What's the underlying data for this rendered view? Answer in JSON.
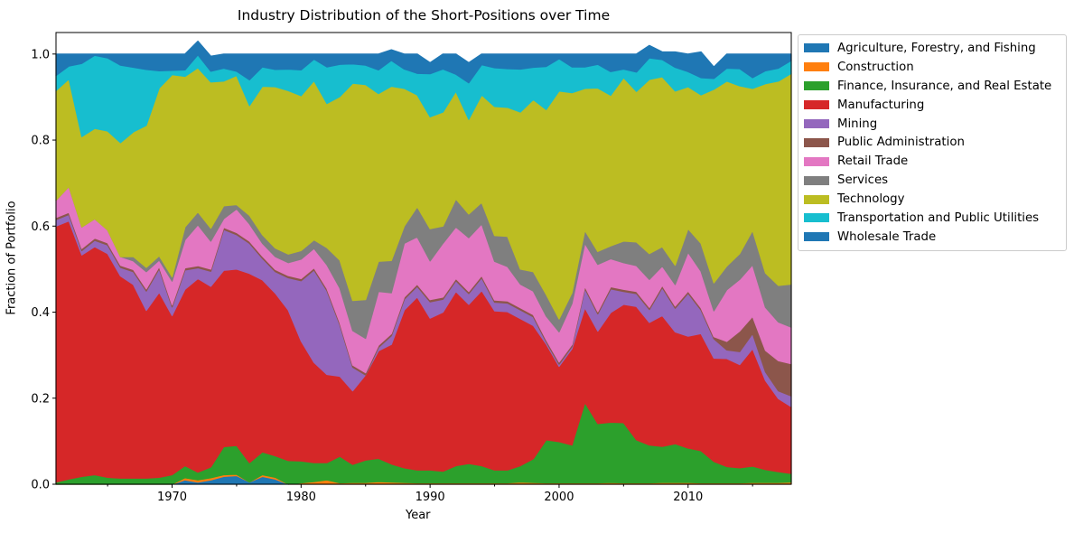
{
  "chart_data": {
    "type": "area",
    "stacked": true,
    "title": "Industry Distribution of the Short-Positions over Time",
    "xlabel": "Year",
    "ylabel": "Fraction of Portfolio",
    "xlim": [
      1961,
      2018
    ],
    "ylim": [
      0,
      1.05
    ],
    "xticks": [
      1970,
      1980,
      1990,
      2000,
      2010
    ],
    "yticks": [
      0.0,
      0.2,
      0.4,
      0.6,
      0.8,
      1.0
    ],
    "grid": false,
    "legend_position": "outside-right",
    "x": [
      1961,
      1962,
      1963,
      1964,
      1965,
      1966,
      1967,
      1968,
      1969,
      1970,
      1971,
      1972,
      1973,
      1974,
      1975,
      1976,
      1977,
      1978,
      1979,
      1980,
      1981,
      1982,
      1983,
      1984,
      1985,
      1986,
      1987,
      1988,
      1989,
      1990,
      1991,
      1992,
      1993,
      1994,
      1995,
      1996,
      1997,
      1998,
      1999,
      2000,
      2001,
      2002,
      2003,
      2004,
      2005,
      2006,
      2007,
      2008,
      2009,
      2010,
      2011,
      2012,
      2013,
      2014,
      2015,
      2016,
      2017,
      2018
    ],
    "series_cumulative_note": "values are per-industry fractions; stacked in listed order",
    "series": [
      {
        "name": "Agriculture, Forestry, and Fishing",
        "color": "#1f77b4",
        "values": [
          0,
          0,
          0,
          0,
          0,
          0,
          0,
          0,
          0,
          0,
          0.01,
          0.005,
          0.01,
          0.018,
          0.02,
          0.005,
          0.018,
          0.012,
          0,
          0,
          0,
          0,
          0,
          0,
          0,
          0,
          0,
          0,
          0,
          0,
          0,
          0,
          0,
          0,
          0,
          0,
          0,
          0,
          0,
          0,
          0,
          0,
          0,
          0,
          0,
          0,
          0,
          0,
          0,
          0,
          0,
          0,
          0,
          0,
          0,
          0,
          0,
          0
        ]
      },
      {
        "name": "Construction",
        "color": "#ff7f0e",
        "values": [
          0,
          0,
          0,
          0,
          0,
          0,
          0,
          0,
          0,
          0,
          0.005,
          0.005,
          0.005,
          0.004,
          0.003,
          0,
          0.004,
          0.004,
          0,
          0.003,
          0.006,
          0.01,
          0.003,
          0.004,
          0.004,
          0.006,
          0.005,
          0.004,
          0.003,
          0.003,
          0.003,
          0.003,
          0.003,
          0.003,
          0.003,
          0.003,
          0.005,
          0.004,
          0.003,
          0.003,
          0.003,
          0.003,
          0.003,
          0.004,
          0.003,
          0.003,
          0.003,
          0.004,
          0.004,
          0.004,
          0.003,
          0.003,
          0.003,
          0.003,
          0.004,
          0.004,
          0.004,
          0.005
        ]
      },
      {
        "name": "Finance, Insurance, and Real Estate",
        "color": "#2ca02c",
        "values": [
          0.005,
          0.012,
          0.018,
          0.022,
          0.016,
          0.014,
          0.014,
          0.014,
          0.016,
          0.022,
          0.028,
          0.018,
          0.025,
          0.065,
          0.067,
          0.045,
          0.053,
          0.05,
          0.055,
          0.051,
          0.044,
          0.04,
          0.062,
          0.042,
          0.052,
          0.054,
          0.042,
          0.034,
          0.03,
          0.03,
          0.027,
          0.04,
          0.045,
          0.04,
          0.03,
          0.03,
          0.038,
          0.055,
          0.1,
          0.096,
          0.088,
          0.187,
          0.138,
          0.14,
          0.14,
          0.1,
          0.088,
          0.084,
          0.09,
          0.08,
          0.075,
          0.05,
          0.038,
          0.035,
          0.038,
          0.03,
          0.025,
          0.02
        ]
      },
      {
        "name": "Manufacturing",
        "color": "#d62728",
        "values": [
          0.595,
          0.6,
          0.515,
          0.53,
          0.52,
          0.47,
          0.45,
          0.39,
          0.43,
          0.37,
          0.41,
          0.45,
          0.42,
          0.41,
          0.41,
          0.44,
          0.4,
          0.378,
          0.35,
          0.279,
          0.233,
          0.205,
          0.186,
          0.171,
          0.198,
          0.25,
          0.278,
          0.367,
          0.402,
          0.353,
          0.37,
          0.405,
          0.37,
          0.407,
          0.37,
          0.368,
          0.342,
          0.31,
          0.223,
          0.175,
          0.224,
          0.22,
          0.215,
          0.255,
          0.275,
          0.31,
          0.285,
          0.304,
          0.26,
          0.26,
          0.272,
          0.24,
          0.251,
          0.24,
          0.273,
          0.207,
          0.17,
          0.155
        ]
      },
      {
        "name": "Mining",
        "color": "#9467bd",
        "values": [
          0.015,
          0.015,
          0.01,
          0.015,
          0.02,
          0.02,
          0.03,
          0.045,
          0.055,
          0.02,
          0.045,
          0.025,
          0.035,
          0.095,
          0.08,
          0.07,
          0.05,
          0.05,
          0.075,
          0.14,
          0.215,
          0.195,
          0.12,
          0.055,
          0,
          0.008,
          0.02,
          0.025,
          0.025,
          0.038,
          0.03,
          0.025,
          0.025,
          0.03,
          0.02,
          0.02,
          0.02,
          0.02,
          0.005,
          0.005,
          0.005,
          0.045,
          0.04,
          0.055,
          0.03,
          0.03,
          0.03,
          0.065,
          0.055,
          0.1,
          0.055,
          0.045,
          0.02,
          0.03,
          0.035,
          0.02,
          0.018,
          0.025
        ]
      },
      {
        "name": "Public Administration",
        "color": "#8c564b",
        "values": [
          0.005,
          0.005,
          0.005,
          0.005,
          0.005,
          0.005,
          0.005,
          0.005,
          0.005,
          0.005,
          0.005,
          0.005,
          0.005,
          0.005,
          0.005,
          0.005,
          0.005,
          0.005,
          0.005,
          0.005,
          0.005,
          0.005,
          0.005,
          0.005,
          0.005,
          0.005,
          0.005,
          0.005,
          0.005,
          0.005,
          0.005,
          0.005,
          0.005,
          0.005,
          0.005,
          0.005,
          0.005,
          0.005,
          0.005,
          0.005,
          0.005,
          0.005,
          0.005,
          0.005,
          0.005,
          0.005,
          0.005,
          0.005,
          0.005,
          0.005,
          0.005,
          0.005,
          0.02,
          0.048,
          0.04,
          0.05,
          0.07,
          0.075
        ]
      },
      {
        "name": "Retail Trade",
        "color": "#e377c2",
        "values": [
          0.04,
          0.06,
          0.05,
          0.045,
          0.03,
          0.02,
          0.02,
          0.04,
          0.015,
          0.055,
          0.065,
          0.095,
          0.065,
          0.02,
          0.055,
          0.04,
          0.03,
          0.03,
          0.03,
          0.045,
          0.045,
          0.055,
          0.08,
          0.08,
          0.08,
          0.125,
          0.095,
          0.125,
          0.11,
          0.09,
          0.125,
          0.12,
          0.125,
          0.12,
          0.09,
          0.08,
          0.055,
          0.055,
          0.055,
          0.07,
          0.095,
          0.1,
          0.11,
          0.065,
          0.062,
          0.06,
          0.065,
          0.045,
          0.05,
          0.09,
          0.085,
          0.06,
          0.12,
          0.12,
          0.12,
          0.1,
          0.09,
          0.085
        ]
      },
      {
        "name": "Services",
        "color": "#7f7f7f",
        "values": [
          0,
          0,
          0,
          0,
          0,
          0,
          0.01,
          0.01,
          0.01,
          0.01,
          0.03,
          0.03,
          0.03,
          0.03,
          0.01,
          0.02,
          0.02,
          0.02,
          0.02,
          0.02,
          0.02,
          0.04,
          0.065,
          0.07,
          0.09,
          0.07,
          0.075,
          0.04,
          0.07,
          0.075,
          0.04,
          0.065,
          0.055,
          0.05,
          0.06,
          0.07,
          0.035,
          0.045,
          0.05,
          0.03,
          0.025,
          0.03,
          0.03,
          0.03,
          0.05,
          0.055,
          0.06,
          0.045,
          0.045,
          0.055,
          0.065,
          0.065,
          0.055,
          0.06,
          0.08,
          0.08,
          0.085,
          0.1
        ]
      },
      {
        "name": "Technology",
        "color": "#bcbd22",
        "values": [
          0.255,
          0.25,
          0.21,
          0.21,
          0.23,
          0.265,
          0.29,
          0.33,
          0.39,
          0.47,
          0.35,
          0.335,
          0.34,
          0.29,
          0.3,
          0.255,
          0.345,
          0.375,
          0.38,
          0.36,
          0.37,
          0.335,
          0.38,
          0.505,
          0.5,
          0.39,
          0.405,
          0.32,
          0.26,
          0.26,
          0.265,
          0.25,
          0.22,
          0.25,
          0.3,
          0.3,
          0.365,
          0.4,
          0.43,
          0.53,
          0.465,
          0.33,
          0.38,
          0.35,
          0.38,
          0.35,
          0.405,
          0.395,
          0.405,
          0.33,
          0.345,
          0.45,
          0.43,
          0.39,
          0.33,
          0.44,
          0.475,
          0.49
        ]
      },
      {
        "name": "Transportation and Public Utilities",
        "color": "#17becf",
        "values": [
          0.035,
          0.03,
          0.17,
          0.17,
          0.17,
          0.18,
          0.15,
          0.13,
          0.04,
          0.01,
          0.015,
          0.03,
          0.025,
          0.03,
          0.01,
          0.06,
          0.045,
          0.04,
          0.05,
          0.06,
          0.05,
          0.085,
          0.075,
          0.045,
          0.045,
          0.055,
          0.06,
          0.045,
          0.05,
          0.1,
          0.1,
          0.04,
          0.085,
          0.07,
          0.09,
          0.09,
          0.1,
          0.075,
          0.1,
          0.075,
          0.06,
          0.05,
          0.055,
          0.055,
          0.02,
          0.045,
          0.05,
          0.04,
          0.055,
          0.035,
          0.04,
          0.025,
          0.03,
          0.04,
          0.025,
          0.03,
          0.03,
          0.03
        ]
      },
      {
        "name": "Wholesale Trade",
        "color": "#1f77b4",
        "values": [
          0.05,
          0.028,
          0.022,
          0.003,
          0.009,
          0.026,
          0.031,
          0.036,
          0.039,
          0.038,
          0.037,
          0.032,
          0.035,
          0.033,
          0.04,
          0.06,
          0.03,
          0.036,
          0.035,
          0.037,
          0.012,
          0.03,
          0.024,
          0.023,
          0.026,
          0.037,
          0.025,
          0.035,
          0.045,
          0.026,
          0.035,
          0.047,
          0.047,
          0.025,
          0.032,
          0.034,
          0.035,
          0.031,
          0.029,
          0.011,
          0.03,
          0.03,
          0.024,
          0.041,
          0.035,
          0.042,
          0.029,
          0.018,
          0.036,
          0.041,
          0.06,
          0.027,
          0.033,
          0.034,
          0.055,
          0.039,
          0.033,
          0.015
        ]
      }
    ]
  }
}
